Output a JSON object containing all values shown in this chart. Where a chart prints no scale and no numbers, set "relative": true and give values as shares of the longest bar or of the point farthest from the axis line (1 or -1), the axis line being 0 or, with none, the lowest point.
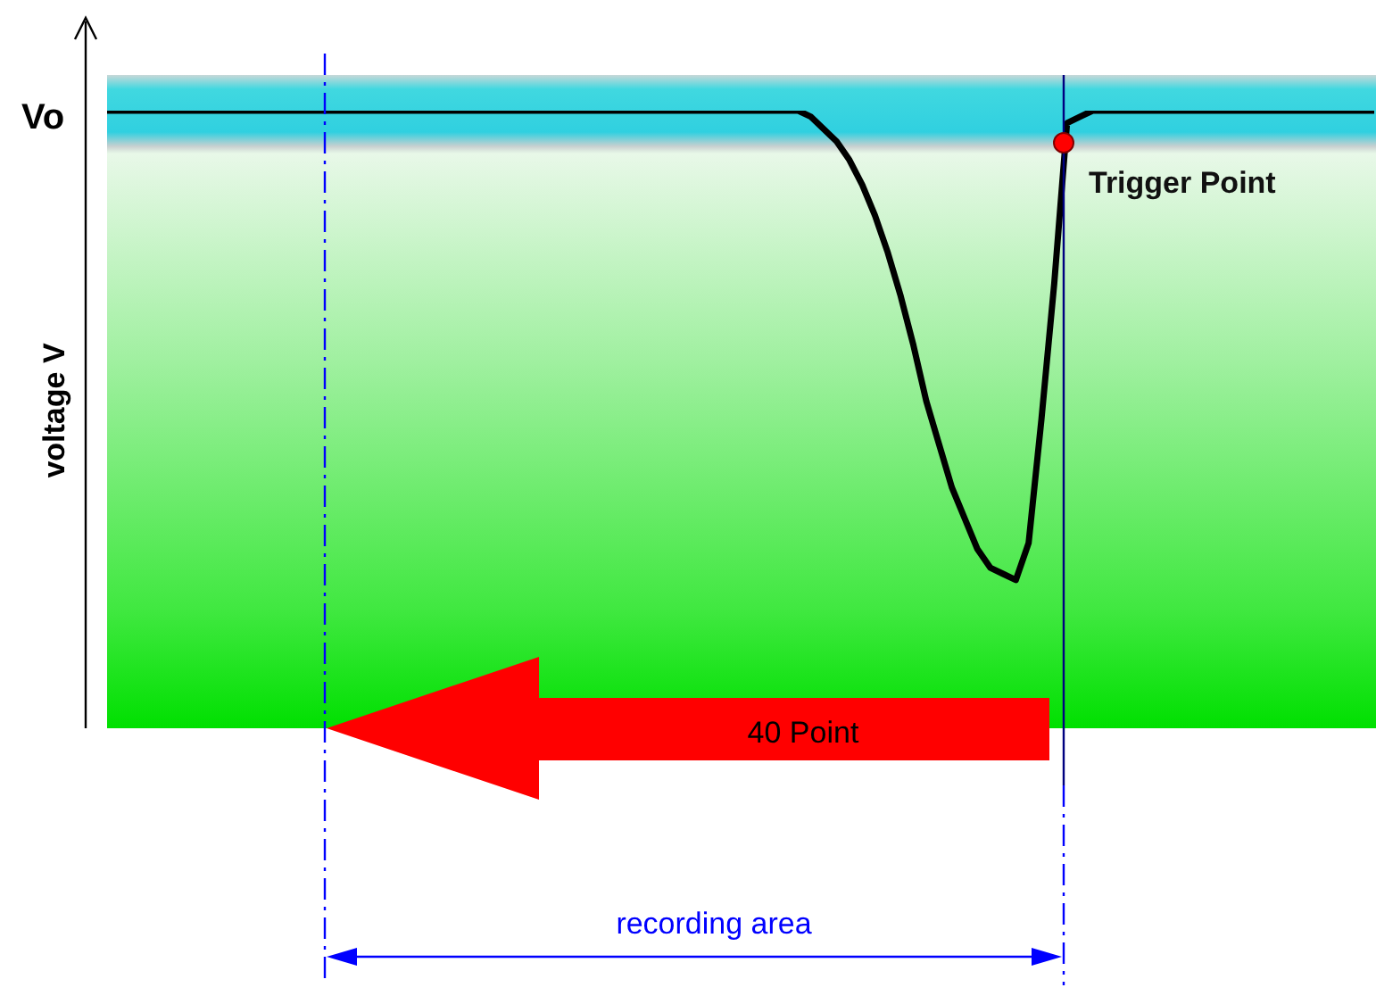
{
  "chart_data": {
    "type": "line",
    "relative": true,
    "ylabel": "voltage V",
    "categories": [
      null,
      null,
      null,
      null,
      null,
      null,
      null,
      null,
      null,
      null,
      null,
      null,
      null,
      null,
      null,
      null,
      null,
      null,
      null,
      null,
      null,
      null,
      null,
      null,
      null,
      null,
      null,
      null,
      null,
      null,
      null,
      null,
      null,
      null,
      null,
      null,
      null,
      null,
      null,
      null,
      null,
      null,
      null,
      null,
      null,
      null,
      null,
      null,
      null,
      null,
      null,
      null,
      null,
      null,
      null,
      null,
      null,
      null,
      null,
      null,
      null,
      null,
      null,
      null,
      null,
      null,
      null,
      null,
      null,
      null,
      null,
      null,
      null,
      null,
      null,
      null,
      null,
      null,
      null,
      null,
      null,
      null,
      null,
      null,
      null,
      null,
      null,
      null,
      null,
      null,
      null,
      null,
      null,
      null,
      null,
      null,
      null,
      null,
      null,
      null
    ],
    "series": [
      {
        "color": "#000000",
        "values": [
          1,
          1,
          1,
          1,
          1,
          1,
          1,
          1,
          1,
          1,
          1,
          1,
          1,
          1,
          1,
          1,
          1,
          1,
          1,
          1,
          1,
          1,
          1,
          1,
          1,
          1,
          1,
          1,
          1,
          1,
          1,
          1,
          1,
          1,
          1,
          1,
          1,
          1,
          1,
          1,
          1,
          1,
          1,
          1,
          1,
          1,
          1,
          1,
          1,
          1,
          1,
          1,
          1,
          1,
          1,
          0.99,
          0.97,
          0.95,
          0.92,
          0.88,
          0.83,
          0.77,
          0.7,
          0.62,
          0.53,
          0.46,
          0.39,
          0.34,
          0.29,
          0.26,
          0.25,
          0.24,
          0.3,
          0.5,
          0.72,
          0.98,
          0.99,
          1,
          1,
          1,
          1,
          1,
          1,
          1,
          1,
          1,
          1,
          1,
          1,
          1,
          1,
          1,
          1,
          1,
          1,
          1,
          1,
          1,
          1,
          1
        ]
      }
    ],
    "annotations": [
      "Vo",
      "Trigger Point",
      "40 Point",
      "recording area"
    ],
    "marker": "none",
    "line_style": "solid"
  }
}
